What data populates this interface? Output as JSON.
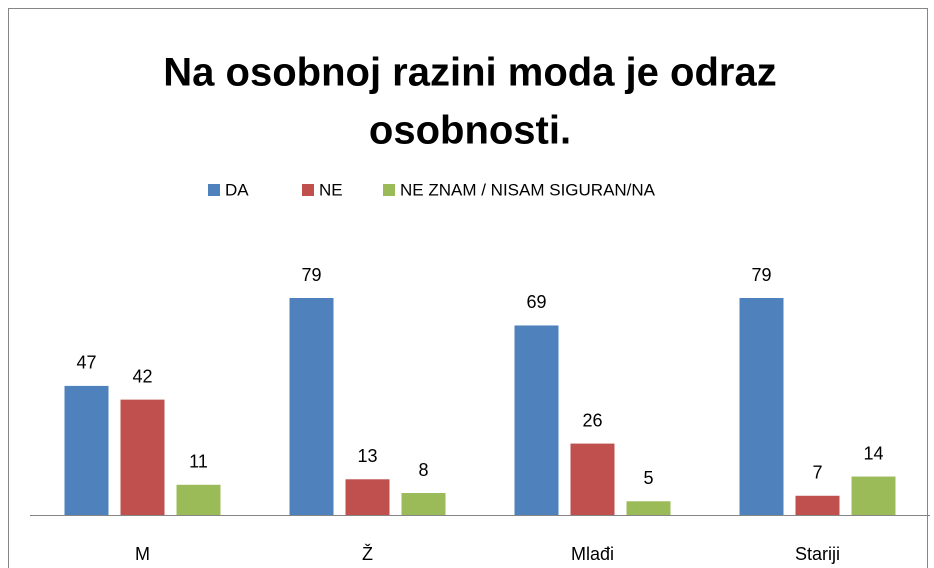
{
  "chart_data": {
    "type": "bar",
    "title": [
      "Na osobnoj razini moda je odraz",
      "osobnosti."
    ],
    "categories": [
      "M",
      "Ž",
      "Mlađi",
      "Stariji"
    ],
    "series": [
      {
        "name": "DA",
        "color": "#4f81bd",
        "values": [
          47,
          79,
          69,
          79
        ]
      },
      {
        "name": "NE",
        "color": "#c0504d",
        "values": [
          42,
          13,
          26,
          7
        ]
      },
      {
        "name": "NE ZNAM / NISAM SIGURAN/NA",
        "color": "#9bbb59",
        "values": [
          11,
          8,
          5,
          14
        ]
      }
    ],
    "legend": "top"
  }
}
